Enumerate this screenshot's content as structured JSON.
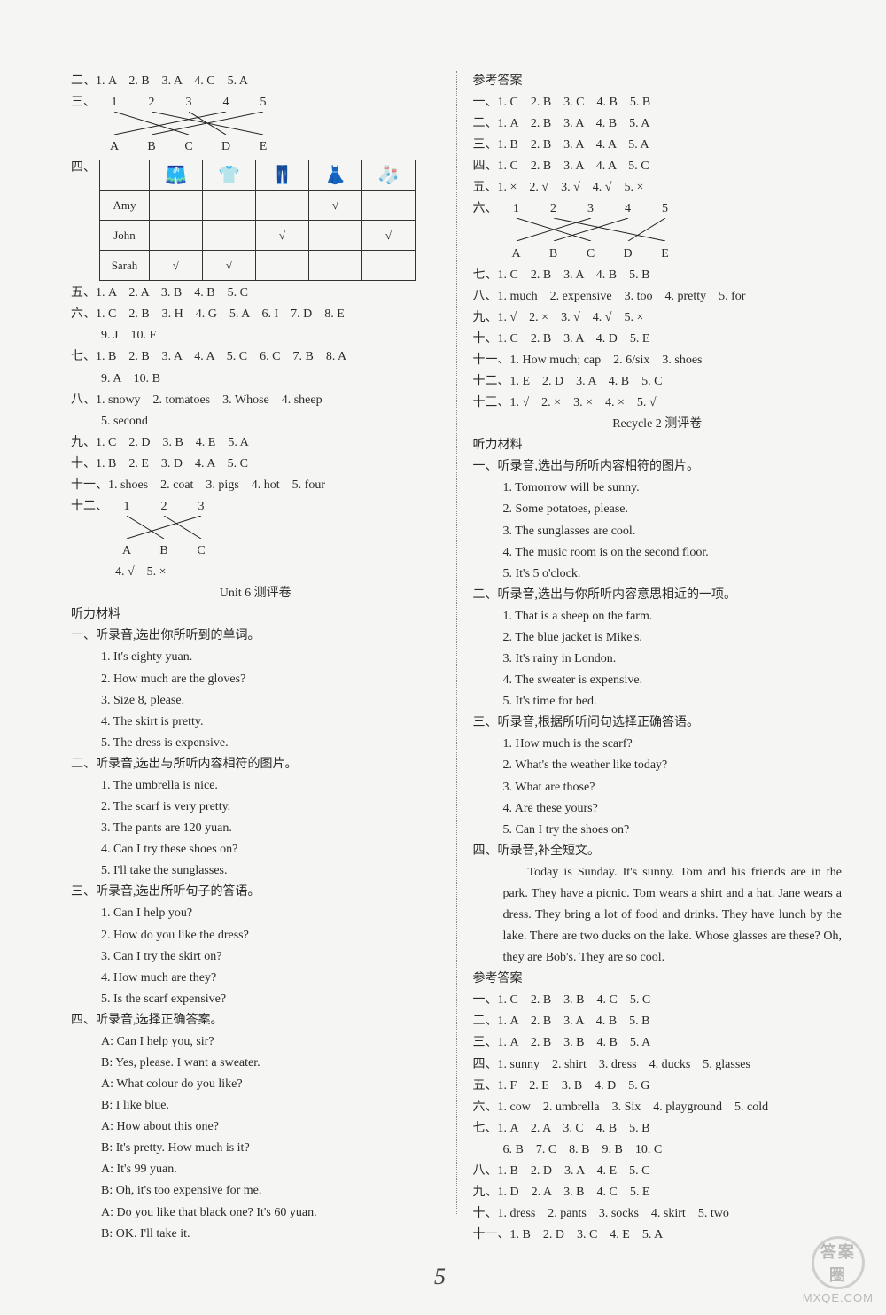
{
  "left": {
    "l2": "二、1. A　2. B　3. A　4. C　5. A",
    "l3_label": "三、",
    "match3": {
      "top": [
        "1",
        "2",
        "3",
        "4",
        "5"
      ],
      "bot": [
        "A",
        "B",
        "C",
        "D",
        "E"
      ],
      "lines": [
        [
          0,
          2
        ],
        [
          1,
          4
        ],
        [
          2,
          3
        ],
        [
          3,
          0
        ],
        [
          4,
          1
        ]
      ]
    },
    "l4_label": "四、",
    "table": {
      "headers": [
        "",
        "shorts",
        "tshirt",
        "pants",
        "dress",
        "socks"
      ],
      "rows": [
        {
          "name": "Amy",
          "cells": [
            "",
            "",
            "",
            "√",
            ""
          ]
        },
        {
          "name": "John",
          "cells": [
            "",
            "",
            "√",
            "",
            "√"
          ]
        },
        {
          "name": "Sarah",
          "cells": [
            "√",
            "√",
            "",
            "",
            ""
          ]
        }
      ]
    },
    "l5": "五、1. A　2. A　3. B　4. B　5. C",
    "l6a": "六、1. C　2. B　3. H　4. G　5. A　6. I　7. D　8. E",
    "l6b": "9. J　10. F",
    "l7a": "七、1. B　2. B　3. A　4. A　5. C　6. C　7. B　8. A",
    "l7b": "9. A　10. B",
    "l8a": "八、1. snowy　2. tomatoes　3. Whose　4. sheep",
    "l8b": "5. second",
    "l9": "九、1. C　2. D　3. B　4. E　5. A",
    "l10": "十、1. B　2. E　3. D　4. A　5. C",
    "l11": "十一、1. shoes　2. coat　3. pigs　4. hot　5. four",
    "l12_label": "十二、",
    "match12": {
      "top": [
        "1",
        "2",
        "3"
      ],
      "bot": [
        "A",
        "B",
        "C"
      ],
      "lines": [
        [
          0,
          1
        ],
        [
          1,
          2
        ],
        [
          2,
          0
        ]
      ]
    },
    "l12b": "4. √　5. ×",
    "unit6_title": "Unit 6 测评卷",
    "listen_hdr": "听力材料",
    "s1h": "一、听录音,选出你所听到的单词。",
    "s1": [
      "1. It's eighty yuan.",
      "2. How much are the gloves?",
      "3. Size 8, please.",
      "4. The skirt is pretty.",
      "5. The dress is expensive."
    ],
    "s2h": "二、听录音,选出与所听内容相符的图片。",
    "s2": [
      "1. The umbrella is nice.",
      "2. The scarf is very pretty.",
      "3. The pants are 120 yuan.",
      "4. Can I try these shoes on?",
      "5. I'll take the sunglasses."
    ],
    "s3h": "三、听录音,选出所听句子的答语。",
    "s3": [
      "1.  Can I help you?",
      "2.  How do you like the dress?",
      "3.  Can I try the skirt on?",
      "4.  How much are they?",
      "5.  Is the scarf expensive?"
    ],
    "s4h": "四、听录音,选择正确答案。",
    "s4": [
      "A: Can I help you, sir?",
      "B: Yes, please. I want a sweater.",
      "A: What colour do you like?",
      "B: I like blue.",
      "A: How about this one?",
      "B: It's pretty. How much is it?",
      "A: It's 99 yuan.",
      "B: Oh, it's too expensive for me.",
      "A: Do you like that black one? It's 60 yuan.",
      "B: OK. I'll take it."
    ]
  },
  "right": {
    "ans_hdr": "参考答案",
    "a1": "一、1. C　2. B　3. C　4. B　5. B",
    "a2": "二、1. A　2. B　3. A　4. B　5. A",
    "a3": "三、1. B　2. B　3. A　4. A　5. A",
    "a4": "四、1. C　2. B　3. A　4. A　5. C",
    "a5": "五、1. ×　2. √　3. √　4. √　5. ×",
    "a6_label": "六、",
    "match6": {
      "top": [
        "1",
        "2",
        "3",
        "4",
        "5"
      ],
      "bot": [
        "A",
        "B",
        "C",
        "D",
        "E"
      ],
      "lines": [
        [
          0,
          2
        ],
        [
          1,
          4
        ],
        [
          2,
          0
        ],
        [
          3,
          1
        ],
        [
          4,
          3
        ]
      ]
    },
    "a7": "七、1. C　2. B　3. A　4. B　5. B",
    "a8": "八、1. much　2. expensive　3. too　4. pretty　5. for",
    "a9": "九、1. √　2. ×　3. √　4. √　5. ×",
    "a10": "十、1. C　2. B　3. A　4. D　5. E",
    "a11": "十一、1. How much; cap　2. 6/six　3. shoes",
    "a12": "十二、1. E　2. D　3. A　4. B　5. C",
    "a13": "十三、1. √　2. ×　3. ×　4. ×　5. √",
    "recycle_title": "Recycle 2 测评卷",
    "listen_hdr": "听力材料",
    "r1h": "一、听录音,选出与所听内容相符的图片。",
    "r1": [
      "1. Tomorrow will be sunny.",
      "2. Some potatoes, please.",
      "3. The sunglasses are cool.",
      "4. The music room is on the second floor.",
      "5. It's 5 o'clock."
    ],
    "r2h": "二、听录音,选出与你所听内容意思相近的一项。",
    "r2": [
      "1. That is a sheep on the farm.",
      "2. The blue jacket is Mike's.",
      "3. It's rainy in London.",
      "4. The sweater is expensive.",
      "5. It's time for bed."
    ],
    "r3h": "三、听录音,根据所听问句选择正确答语。",
    "r3": [
      "1. How much is the scarf?",
      "2. What's the weather like today?",
      "3. What are those?",
      "4. Are these yours?",
      "5. Can I try the shoes on?"
    ],
    "r4h": "四、听录音,补全短文。",
    "r4p": "Today is Sunday. It's sunny. Tom and his friends are in the park. They have a picnic. Tom wears a shirt and a hat. Jane wears a dress. They bring a lot of food and drinks. They have lunch by the lake. There are two ducks on the lake. Whose glasses are these? Oh, they are Bob's. They are so cool.",
    "ans_hdr2": "参考答案",
    "b1": "一、1. C　2. B　3. B　4. C　5. C",
    "b2": "二、1. A　2. B　3. A　4. B　5. B",
    "b3": "三、1. A　2. B　3. B　4. B　5. A",
    "b4": "四、1. sunny　2. shirt　3. dress　4. ducks　5. glasses",
    "b5": "五、1. F　2. E　3. B　4. D　5. G",
    "b6": "六、1. cow　2. umbrella　3. Six　4. playground　5. cold",
    "b7a": "七、1. A　2. A　3. C　4. B　5. B",
    "b7b": "6. B　7. C　8. B　9. B　10. C",
    "b8": "八、1. B　2. D　3. A　4. E　5. C",
    "b9": "九、1. D　2. A　3. B　4. C　5. E",
    "b10": "十、1. dress　2. pants　3. socks　4. skirt　5. two",
    "b11": "十一、1. B　2. D　3. C　4. E　5. A"
  },
  "page_num": "5",
  "watermark": {
    "label": "答案圈",
    "url": "MXQE.COM"
  },
  "icons": {
    "shorts": "🩳",
    "tshirt": "👕",
    "pants": "👖",
    "dress": "👗",
    "socks": "🧦"
  }
}
